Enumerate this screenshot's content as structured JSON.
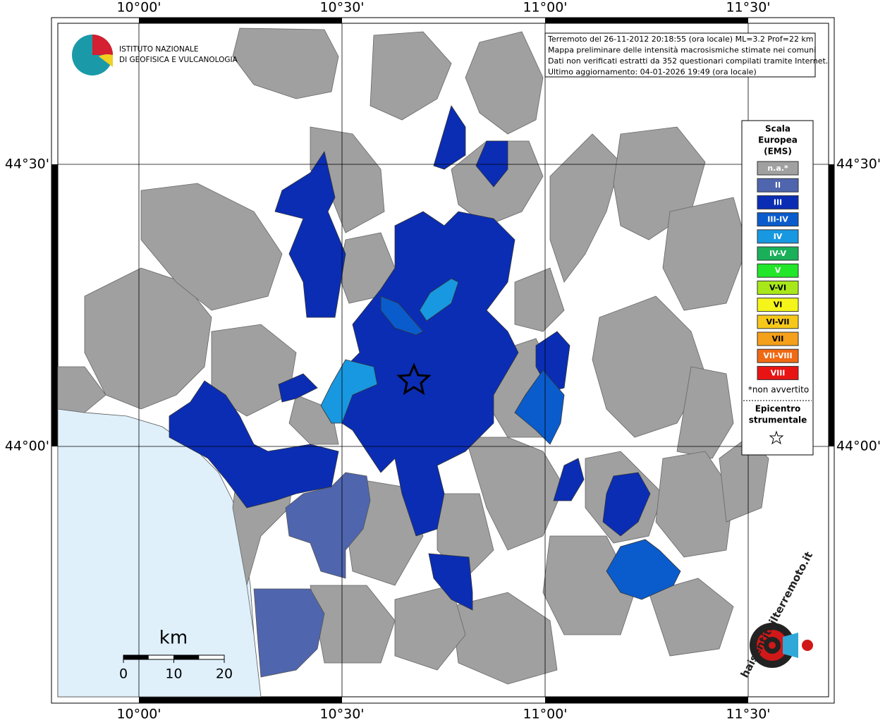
{
  "axes": {
    "longitude_labels": [
      "10°00'",
      "10°30'",
      "11°00'",
      "11°30'"
    ],
    "latitude_labels": [
      "44°30'",
      "44°00'"
    ]
  },
  "logo": {
    "line1": "ISTITUTO NAZIONALE",
    "line2": "DI GEOFISICA E VULCANOLOGIA"
  },
  "info_box": [
    "Terremoto del 26-11-2012 20:18:55 (ora locale) ML=3.2 Prof=22 km",
    "Mappa preliminare delle intensità macrosismiche stimate nei comuni",
    "Dati non verificati estratti da 352 questionari compilati tramite Internet.",
    "Ultimo aggiornamento: 04-01-2026 19:49 (ora locale)"
  ],
  "legend": {
    "title": [
      "Scala",
      "Europea",
      "(EMS)"
    ],
    "items": [
      {
        "label": "n.a.*",
        "color": "#a0a0a0"
      },
      {
        "label": "II",
        "color": "#4f65ae"
      },
      {
        "label": "III",
        "color": "#0a2db4"
      },
      {
        "label": "III-IV",
        "color": "#0a5ccc"
      },
      {
        "label": "IV",
        "color": "#1898e0"
      },
      {
        "label": "IV-V",
        "color": "#1ab05a"
      },
      {
        "label": "V",
        "color": "#22e62a"
      },
      {
        "label": "V-VI",
        "color": "#a8e81a"
      },
      {
        "label": "VI",
        "color": "#f5f51a"
      },
      {
        "label": "VI-VII",
        "color": "#f5c81a"
      },
      {
        "label": "VII",
        "color": "#f5a01a"
      },
      {
        "label": "VII-VIII",
        "color": "#f06a14"
      },
      {
        "label": "VIII",
        "color": "#e81414"
      }
    ],
    "note": "*non avvertito",
    "epicenter_label": [
      "Epicentro",
      "strumentale"
    ]
  },
  "scale_bar": {
    "unit": "km",
    "ticks": [
      0,
      10,
      20
    ]
  },
  "watermark": "haisentitoilterremoto.it"
}
